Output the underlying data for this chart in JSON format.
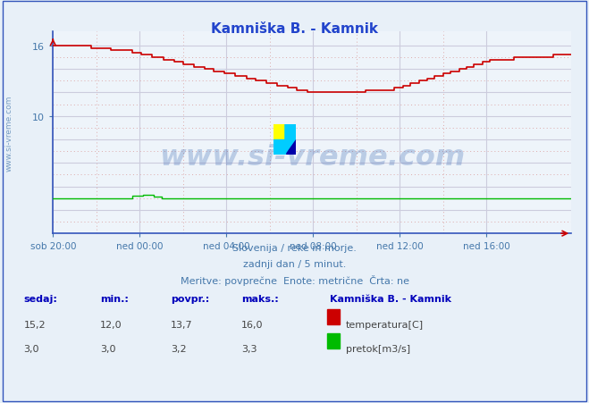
{
  "title": "Kamniška B. - Kamnik",
  "title_color": "#2244cc",
  "bg_color": "#e8f0f8",
  "plot_bg_color": "#eef4fa",
  "spine_color": "#3355bb",
  "grid_dotted_color": "#ddaaaa",
  "grid_solid_color": "#ccccdd",
  "tick_color": "#4477aa",
  "xlim": [
    0,
    287
  ],
  "ylim": [
    0,
    17.2
  ],
  "ytick_positions": [
    10,
    16
  ],
  "ytick_labels": [
    "10",
    "16"
  ],
  "xtick_positions": [
    0,
    48,
    96,
    144,
    192,
    240
  ],
  "xtick_labels": [
    "sob 20:00",
    "ned 00:00",
    "ned 04:00",
    "ned 08:00",
    "ned 12:00",
    "ned 16:00"
  ],
  "watermark_text": "www.si-vreme.com",
  "watermark_color": "#2255aa",
  "watermark_alpha": 0.25,
  "side_text": "www.si-vreme.com",
  "side_text_color": "#4477aa",
  "subtitle_lines": [
    "Slovenija / reke in morje.",
    "zadnji dan / 5 minut.",
    "Meritve: povprečne  Enote: metrične  Črta: ne"
  ],
  "subtitle_color": "#4477aa",
  "legend_title": "Kamniška B. - Kamnik",
  "legend_color": "#0000bb",
  "table_headers": [
    "sedaj:",
    "min.:",
    "povpr.:",
    "maks.:"
  ],
  "table_header_color": "#0000bb",
  "temp_row": [
    "15,2",
    "12,0",
    "13,7",
    "16,0"
  ],
  "flow_row": [
    "3,0",
    "3,0",
    "3,2",
    "3,3"
  ],
  "temp_label": "temperatura[C]",
  "flow_label": "pretok[m3/s]",
  "temp_color": "#cc0000",
  "flow_color": "#00bb00",
  "table_value_color": "#444444",
  "arrow_color": "#cc0000",
  "xarrow_color": "#cc0000"
}
